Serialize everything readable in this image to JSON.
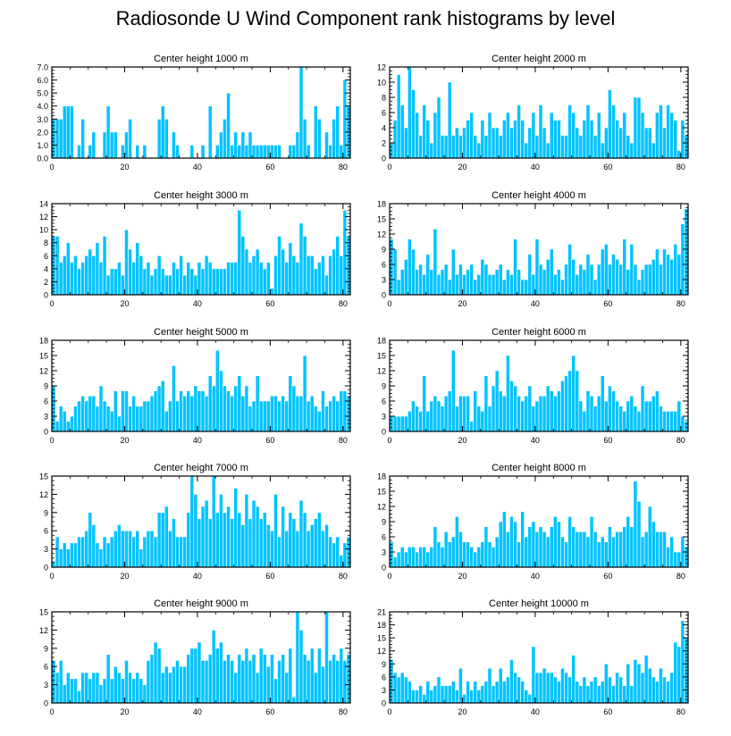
{
  "figure": {
    "title": "Radiosonde U Wind Component rank histograms by level"
  },
  "style": {
    "bar_fill": "#00c3ff",
    "bar_edge": "#ffffff",
    "axis_color": "#000000"
  },
  "chart_data": [
    {
      "type": "bar",
      "title": "Center height 1000 m",
      "xlim": [
        0,
        82
      ],
      "ylim": [
        0,
        7
      ],
      "yticks": [
        0,
        1,
        2,
        3,
        4,
        5,
        6,
        7
      ],
      "ytick_labels": [
        "0.0",
        "1.0",
        "2.0",
        "3.0",
        "4.0",
        "5.0",
        "6.0",
        "7.0"
      ],
      "xticks": [
        0,
        20,
        40,
        60,
        80
      ],
      "values": [
        3,
        3,
        3,
        4,
        4,
        4,
        0,
        1,
        3,
        0,
        1,
        2,
        0,
        0,
        2,
        4,
        2,
        2,
        0,
        1,
        2,
        3,
        0,
        1,
        0,
        1,
        0,
        0,
        0,
        3,
        4,
        3,
        0,
        2,
        1,
        0,
        0,
        0,
        1,
        0,
        0,
        1,
        0,
        4,
        0,
        1,
        2,
        3,
        5,
        1,
        2,
        1,
        2,
        1,
        2,
        1,
        1,
        1,
        1,
        1,
        1,
        1,
        1,
        0,
        0,
        1,
        1,
        2,
        7,
        3,
        1,
        0,
        4,
        3,
        0,
        2,
        1,
        3,
        4,
        1,
        6,
        4
      ]
    },
    {
      "type": "bar",
      "title": "Center height 2000 m",
      "xlim": [
        0,
        82
      ],
      "ylim": [
        0,
        12
      ],
      "yticks": [
        0,
        2,
        4,
        6,
        8,
        10,
        12
      ],
      "ytick_labels": [
        "0",
        "2",
        "4",
        "6",
        "8",
        "10",
        "12"
      ],
      "xticks": [
        0,
        20,
        40,
        60,
        80
      ],
      "values": [
        2,
        5,
        11,
        7,
        4,
        12,
        9,
        6,
        3,
        7,
        5,
        2,
        6,
        8,
        3,
        3,
        10,
        3,
        4,
        3,
        4,
        5,
        6,
        3,
        2,
        5,
        3,
        6,
        4,
        4,
        3,
        5,
        6,
        4,
        5,
        7,
        5,
        2,
        4,
        6,
        3,
        7,
        4,
        2,
        6,
        5,
        5,
        3,
        3,
        7,
        6,
        4,
        3,
        5,
        7,
        5,
        3,
        6,
        2,
        4,
        9,
        7,
        5,
        4,
        6,
        3,
        2,
        8,
        8,
        6,
        4,
        4,
        2,
        6,
        7,
        4,
        7,
        6,
        5,
        1,
        5,
        3
      ]
    },
    {
      "type": "bar",
      "title": "Center height 3000 m",
      "xlim": [
        0,
        82
      ],
      "ylim": [
        0,
        14
      ],
      "yticks": [
        0,
        2,
        4,
        6,
        8,
        10,
        12,
        14
      ],
      "ytick_labels": [
        "0",
        "2",
        "4",
        "6",
        "8",
        "10",
        "12",
        "14"
      ],
      "xticks": [
        0,
        20,
        40,
        60,
        80
      ],
      "values": [
        9,
        9,
        5,
        6,
        8,
        5,
        6,
        4,
        5,
        6,
        7,
        6,
        8,
        5,
        9,
        3,
        4,
        4,
        5,
        3,
        10,
        7,
        5,
        8,
        6,
        4,
        5,
        3,
        4,
        6,
        4,
        3,
        3,
        5,
        4,
        6,
        3,
        5,
        4,
        3,
        5,
        4,
        6,
        5,
        4,
        4,
        4,
        4,
        5,
        5,
        5,
        13,
        9,
        7,
        5,
        6,
        7,
        5,
        4,
        5,
        1,
        6,
        9,
        7,
        5,
        8,
        6,
        5,
        11,
        9,
        6,
        6,
        4,
        5,
        6,
        3,
        6,
        7,
        9,
        6,
        13,
        9
      ]
    },
    {
      "type": "bar",
      "title": "Center height 4000 m",
      "xlim": [
        0,
        82
      ],
      "ylim": [
        0,
        18
      ],
      "yticks": [
        0,
        3,
        6,
        9,
        12,
        15,
        18
      ],
      "ytick_labels": [
        "0",
        "3",
        "6",
        "9",
        "12",
        "15",
        "18"
      ],
      "xticks": [
        0,
        20,
        40,
        60,
        80
      ],
      "values": [
        11,
        9,
        3,
        5,
        7,
        11,
        9,
        5,
        6,
        4,
        8,
        5,
        13,
        4,
        5,
        6,
        3,
        9,
        4,
        6,
        4,
        5,
        6,
        3,
        4,
        7,
        6,
        4,
        4,
        5,
        6,
        3,
        5,
        4,
        11,
        5,
        3,
        3,
        8,
        4,
        11,
        6,
        5,
        7,
        9,
        4,
        5,
        3,
        6,
        10,
        7,
        4,
        6,
        5,
        8,
        6,
        3,
        6,
        9,
        10,
        6,
        8,
        7,
        6,
        11,
        5,
        10,
        6,
        3,
        5,
        6,
        6,
        7,
        9,
        6,
        9,
        8,
        7,
        10,
        8,
        14,
        17
      ]
    },
    {
      "type": "bar",
      "title": "Center height 5000 m",
      "xlim": [
        0,
        82
      ],
      "ylim": [
        0,
        18
      ],
      "yticks": [
        0,
        3,
        6,
        9,
        12,
        15,
        18
      ],
      "ytick_labels": [
        "0",
        "3",
        "6",
        "9",
        "12",
        "15",
        "18"
      ],
      "xticks": [
        0,
        20,
        40,
        60,
        80
      ],
      "values": [
        9,
        2,
        5,
        4,
        2,
        3,
        5,
        6,
        7,
        6,
        7,
        7,
        5,
        9,
        6,
        5,
        4,
        8,
        3,
        8,
        8,
        5,
        7,
        5,
        5,
        6,
        6,
        7,
        8,
        9,
        10,
        4,
        6,
        13,
        6,
        8,
        7,
        8,
        7,
        9,
        8,
        8,
        7,
        11,
        9,
        16,
        12,
        9,
        8,
        7,
        9,
        11,
        7,
        9,
        5,
        6,
        11,
        6,
        6,
        6,
        7,
        7,
        6,
        7,
        6,
        11,
        9,
        7,
        7,
        15,
        6,
        7,
        5,
        4,
        8,
        5,
        6,
        7,
        6,
        8,
        8,
        7
      ]
    },
    {
      "type": "bar",
      "title": "Center height 6000 m",
      "xlim": [
        0,
        82
      ],
      "ylim": [
        0,
        18
      ],
      "yticks": [
        0,
        3,
        6,
        9,
        12,
        15,
        18
      ],
      "ytick_labels": [
        "0",
        "3",
        "6",
        "9",
        "12",
        "15",
        "18"
      ],
      "xticks": [
        0,
        20,
        40,
        60,
        80
      ],
      "values": [
        3,
        3,
        3,
        3,
        3,
        4,
        6,
        5,
        4,
        11,
        4,
        6,
        7,
        6,
        5,
        7,
        8,
        16,
        5,
        7,
        7,
        7,
        2,
        8,
        5,
        4,
        11,
        5,
        9,
        12,
        8,
        7,
        15,
        10,
        9,
        7,
        6,
        7,
        9,
        5,
        6,
        7,
        7,
        9,
        8,
        7,
        8,
        10,
        11,
        12,
        15,
        12,
        6,
        4,
        8,
        7,
        5,
        7,
        11,
        6,
        9,
        8,
        6,
        5,
        4,
        6,
        7,
        5,
        4,
        9,
        6,
        6,
        7,
        8,
        5,
        4,
        4,
        4,
        4,
        6,
        3,
        2
      ]
    },
    {
      "type": "bar",
      "title": "Center height 7000 m",
      "xlim": [
        0,
        82
      ],
      "ylim": [
        0,
        15
      ],
      "yticks": [
        0,
        3,
        6,
        9,
        12,
        15
      ],
      "ytick_labels": [
        "0",
        "3",
        "6",
        "9",
        "12",
        "15"
      ],
      "xticks": [
        0,
        20,
        40,
        60,
        80
      ],
      "values": [
        1,
        5,
        3,
        4,
        3,
        4,
        4,
        5,
        5,
        6,
        9,
        7,
        4,
        3,
        5,
        4,
        5,
        6,
        7,
        6,
        6,
        6,
        5,
        6,
        3,
        5,
        6,
        6,
        5,
        9,
        9,
        10,
        6,
        8,
        5,
        5,
        5,
        9,
        15,
        12,
        8,
        10,
        11,
        8,
        15,
        9,
        12,
        9,
        10,
        8,
        13,
        9,
        7,
        12,
        8,
        11,
        10,
        8,
        9,
        7,
        6,
        12,
        5,
        10,
        6,
        9,
        8,
        6,
        11,
        9,
        6,
        7,
        8,
        9,
        6,
        7,
        5,
        4,
        5,
        2,
        4,
        5
      ]
    },
    {
      "type": "bar",
      "title": "Center height 8000 m",
      "xlim": [
        0,
        82
      ],
      "ylim": [
        0,
        18
      ],
      "yticks": [
        0,
        3,
        6,
        9,
        12,
        15,
        18
      ],
      "ytick_labels": [
        "0",
        "3",
        "6",
        "9",
        "12",
        "15",
        "18"
      ],
      "xticks": [
        0,
        20,
        40,
        60,
        80
      ],
      "values": [
        5,
        2,
        3,
        4,
        3,
        4,
        4,
        3,
        4,
        4,
        3,
        4,
        8,
        5,
        4,
        7,
        5,
        6,
        10,
        7,
        5,
        5,
        4,
        3,
        4,
        5,
        8,
        5,
        4,
        6,
        9,
        11,
        7,
        10,
        9,
        5,
        11,
        6,
        8,
        9,
        7,
        8,
        7,
        6,
        8,
        10,
        9,
        6,
        5,
        10,
        8,
        7,
        7,
        7,
        6,
        10,
        7,
        5,
        6,
        5,
        8,
        6,
        7,
        7,
        8,
        10,
        8,
        17,
        13,
        6,
        7,
        12,
        9,
        7,
        7,
        7,
        4,
        6,
        3,
        3,
        6,
        4
      ]
    },
    {
      "type": "bar",
      "title": "Center height 9000 m",
      "xlim": [
        0,
        82
      ],
      "ylim": [
        0,
        15
      ],
      "yticks": [
        0,
        3,
        6,
        9,
        12,
        15
      ],
      "ytick_labels": [
        "0",
        "3",
        "6",
        "9",
        "12",
        "15"
      ],
      "xticks": [
        0,
        20,
        40,
        60,
        80
      ],
      "values": [
        7,
        5,
        7,
        3,
        5,
        4,
        4,
        2,
        5,
        5,
        4,
        5,
        5,
        3,
        4,
        8,
        4,
        6,
        5,
        4,
        7,
        5,
        4,
        5,
        4,
        3,
        7,
        8,
        10,
        9,
        5,
        6,
        5,
        6,
        7,
        6,
        6,
        8,
        9,
        9,
        10,
        7,
        7,
        8,
        12,
        9,
        10,
        7,
        8,
        7,
        5,
        8,
        7,
        9,
        7,
        8,
        5,
        9,
        8,
        6,
        8,
        4,
        7,
        8,
        5,
        9,
        1,
        15,
        12,
        8,
        7,
        9,
        5,
        9,
        6,
        15,
        7,
        8,
        7,
        9,
        7,
        8
      ]
    },
    {
      "type": "bar",
      "title": "Center height 10000 m",
      "xlim": [
        0,
        82
      ],
      "ylim": [
        0,
        21
      ],
      "yticks": [
        0,
        3,
        6,
        9,
        12,
        15,
        18,
        21
      ],
      "ytick_labels": [
        "0",
        "3",
        "6",
        "9",
        "12",
        "15",
        "18",
        "21"
      ],
      "xticks": [
        0,
        20,
        40,
        60,
        80
      ],
      "values": [
        10,
        7,
        6,
        7,
        6,
        5,
        3,
        3,
        4,
        2,
        5,
        3,
        4,
        6,
        4,
        4,
        4,
        5,
        3,
        8,
        2,
        5,
        3,
        5,
        3,
        4,
        5,
        8,
        4,
        5,
        8,
        5,
        6,
        10,
        7,
        6,
        5,
        3,
        2,
        13,
        7,
        7,
        8,
        7,
        7,
        6,
        5,
        8,
        7,
        6,
        11,
        5,
        4,
        6,
        4,
        5,
        6,
        4,
        5,
        9,
        6,
        4,
        7,
        6,
        4,
        9,
        4,
        10,
        9,
        7,
        11,
        8,
        6,
        5,
        8,
        6,
        5,
        7,
        14,
        13,
        19,
        15
      ]
    }
  ]
}
